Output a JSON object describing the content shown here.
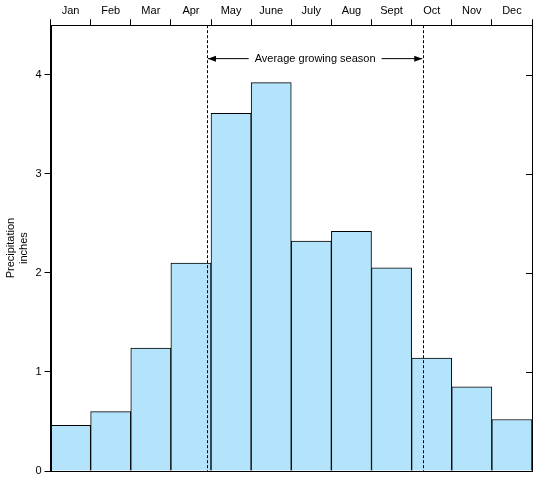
{
  "chart_data": {
    "type": "bar",
    "categories": [
      "Jan",
      "Feb",
      "Mar",
      "Apr",
      "May",
      "June",
      "July",
      "Aug",
      "Sept",
      "Oct",
      "Nov",
      "Dec"
    ],
    "values": [
      0.46,
      0.6,
      1.24,
      2.1,
      3.61,
      3.92,
      2.32,
      2.42,
      2.05,
      1.14,
      0.85,
      0.52
    ],
    "color": "#b3e4fb",
    "y_label": "Precipitation inches",
    "ylim": [
      0,
      4.5
    ],
    "yticks": [
      0,
      1,
      2,
      3,
      4
    ],
    "grid": false,
    "annotations": [
      {
        "text": "Average growing season",
        "x": [
          3.4,
          8.79
        ]
      }
    ]
  }
}
